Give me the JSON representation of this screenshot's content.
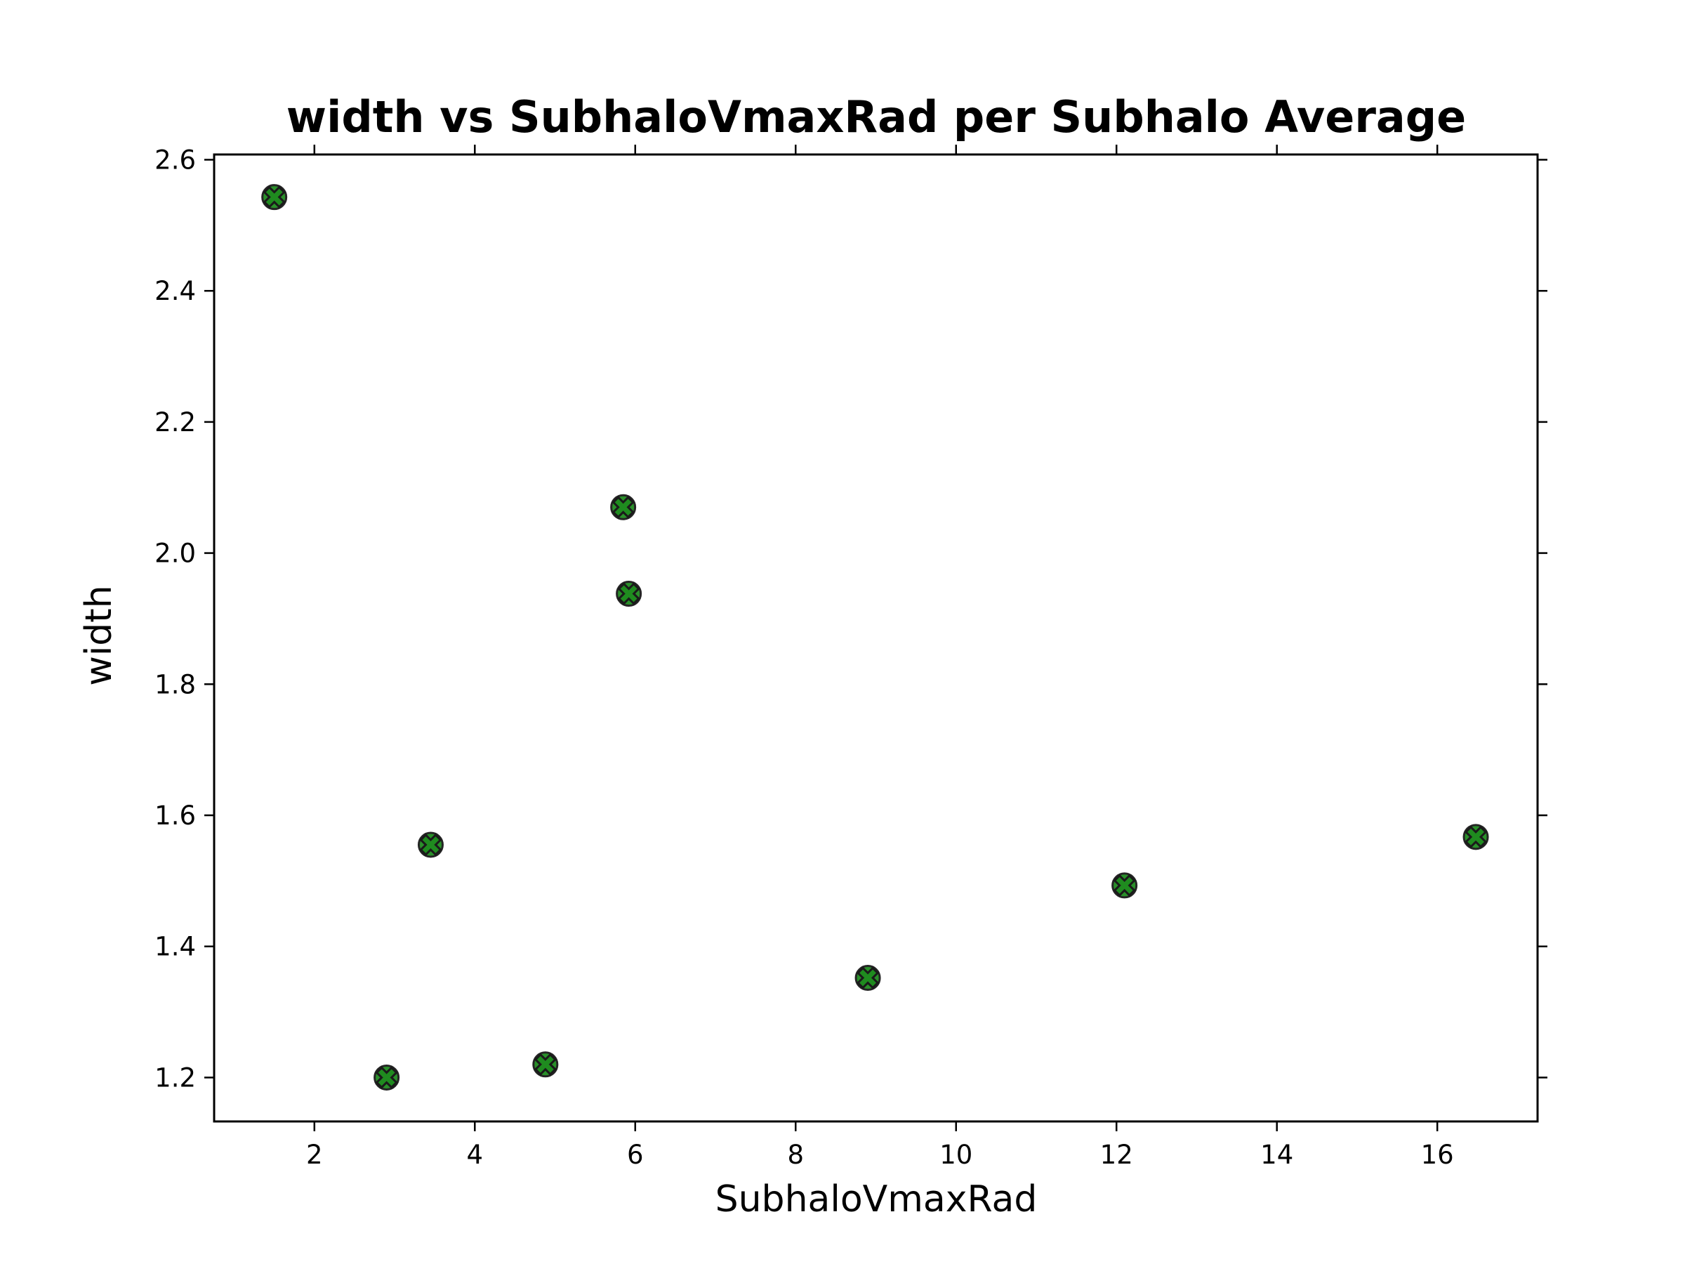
{
  "chart_data": {
    "type": "scatter",
    "title": "width vs SubhaloVmaxRad per Subhalo Average",
    "xlabel": "SubhaloVmaxRad",
    "ylabel": "width",
    "xlim": [
      0.75,
      17.25
    ],
    "ylim": [
      1.133,
      2.608
    ],
    "xticks": [
      2,
      4,
      6,
      8,
      10,
      12,
      14,
      16
    ],
    "yticks": [
      1.2,
      1.4,
      1.6,
      1.8,
      2.0,
      2.2,
      2.4,
      2.6
    ],
    "xtick_labels": [
      "2",
      "4",
      "6",
      "8",
      "10",
      "12",
      "14",
      "16"
    ],
    "ytick_labels": [
      "1.2",
      "1.4",
      "1.6",
      "1.8",
      "2.0",
      "2.2",
      "2.4",
      "2.6"
    ],
    "grid": false,
    "marker": "X",
    "marker_color": "#1f8b1f",
    "marker_edge_color": "#1a1a1a",
    "points": [
      {
        "x": 1.5,
        "y": 2.543
      },
      {
        "x": 2.9,
        "y": 1.2
      },
      {
        "x": 3.45,
        "y": 1.555
      },
      {
        "x": 4.88,
        "y": 1.22
      },
      {
        "x": 5.85,
        "y": 2.07
      },
      {
        "x": 5.92,
        "y": 1.938
      },
      {
        "x": 8.9,
        "y": 1.352
      },
      {
        "x": 12.1,
        "y": 1.493
      },
      {
        "x": 16.48,
        "y": 1.567
      }
    ]
  }
}
